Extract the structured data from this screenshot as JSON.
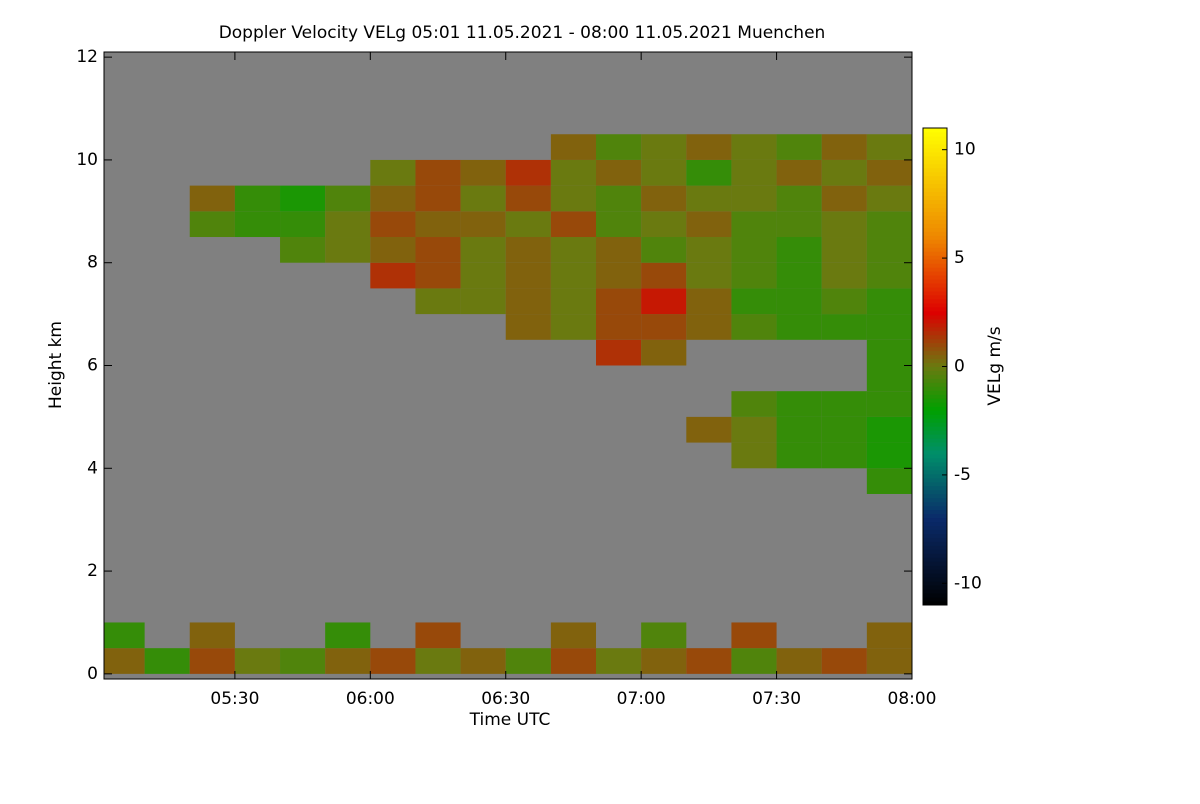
{
  "chart_data": {
    "type": "heatmap",
    "title": "Doppler Velocity VELg   05:01 11.05.2021 - 08:00 11.05.2021 Muenchen",
    "xlabel": "Time UTC",
    "ylabel": "Height km",
    "colorbar_label": "VELg m/s",
    "xlim": [
      5.0167,
      8.0
    ],
    "ylim": [
      -0.1,
      12.1
    ],
    "xticks": [
      {
        "value": 5.5,
        "label": "05:30"
      },
      {
        "value": 6.0,
        "label": "06:00"
      },
      {
        "value": 6.5,
        "label": "06:30"
      },
      {
        "value": 7.0,
        "label": "07:00"
      },
      {
        "value": 7.5,
        "label": "07:30"
      },
      {
        "value": 8.0,
        "label": "08:00"
      }
    ],
    "yticks": [
      0,
      2,
      4,
      6,
      8,
      10,
      12
    ],
    "clim": [
      -11,
      11
    ],
    "cticks": [
      -10,
      -5,
      0,
      5,
      10
    ],
    "background": "#808080",
    "colorscale": [
      [
        -11,
        "#000000"
      ],
      [
        -7,
        "#0a2a6a"
      ],
      [
        -4,
        "#008f6a"
      ],
      [
        -2,
        "#00a000"
      ],
      [
        0,
        "#6a7a10"
      ],
      [
        2.5,
        "#dd0000"
      ],
      [
        6,
        "#ee8800"
      ],
      [
        11,
        "#ffff00"
      ]
    ],
    "x_bins": [
      5.0167,
      5.1667,
      5.3333,
      5.5,
      5.6667,
      5.8333,
      6.0,
      6.1667,
      6.3333,
      6.5,
      6.6667,
      6.8333,
      7.0,
      7.1667,
      7.3333,
      7.5,
      7.6667,
      7.8333,
      8.0
    ],
    "y_bins": [
      0,
      0.5,
      1,
      1.5,
      2,
      2.5,
      3,
      3.5,
      4,
      4.5,
      5,
      5.5,
      6,
      6.5,
      7,
      7.5,
      8,
      8.5,
      9,
      9.5,
      10,
      10.5,
      11
    ],
    "z": [
      [
        0.5,
        -1,
        1,
        0,
        -0.5,
        0.5,
        1,
        0,
        0.5,
        -0.5,
        1,
        0,
        0.5,
        1,
        -0.5,
        0.5,
        1,
        0.5
      ],
      [
        -1,
        null,
        0.5,
        null,
        null,
        -1,
        null,
        1,
        null,
        null,
        0.5,
        null,
        -0.5,
        null,
        1,
        null,
        null,
        0.5
      ],
      [
        null,
        null,
        null,
        null,
        null,
        null,
        null,
        null,
        null,
        null,
        null,
        null,
        null,
        null,
        null,
        null,
        null,
        null
      ],
      [
        null,
        null,
        null,
        null,
        null,
        null,
        null,
        null,
        null,
        null,
        null,
        null,
        null,
        null,
        null,
        null,
        null,
        null
      ],
      [
        null,
        null,
        null,
        null,
        null,
        null,
        null,
        null,
        null,
        null,
        null,
        null,
        null,
        null,
        null,
        null,
        null,
        null
      ],
      [
        null,
        null,
        null,
        null,
        null,
        null,
        null,
        null,
        null,
        null,
        null,
        null,
        null,
        null,
        null,
        null,
        null,
        null
      ],
      [
        null,
        null,
        null,
        null,
        null,
        null,
        null,
        null,
        null,
        null,
        null,
        null,
        null,
        null,
        null,
        null,
        null,
        null
      ],
      [
        null,
        null,
        null,
        null,
        null,
        null,
        null,
        null,
        null,
        null,
        null,
        null,
        null,
        null,
        null,
        null,
        null,
        -1
      ],
      [
        null,
        null,
        null,
        null,
        null,
        null,
        null,
        null,
        null,
        null,
        null,
        null,
        null,
        null,
        0,
        -1,
        -1,
        -1.5
      ],
      [
        null,
        null,
        null,
        null,
        null,
        null,
        null,
        null,
        null,
        null,
        null,
        null,
        null,
        0.5,
        0,
        -1,
        -1,
        -1.5
      ],
      [
        null,
        null,
        null,
        null,
        null,
        null,
        null,
        null,
        null,
        null,
        null,
        null,
        null,
        null,
        -0.5,
        -1,
        -1,
        -1
      ],
      [
        null,
        null,
        null,
        null,
        null,
        null,
        null,
        null,
        null,
        null,
        null,
        null,
        null,
        null,
        null,
        null,
        null,
        -1
      ],
      [
        null,
        null,
        null,
        null,
        null,
        null,
        null,
        null,
        null,
        null,
        null,
        1.5,
        0.5,
        null,
        null,
        null,
        null,
        -1
      ],
      [
        null,
        null,
        null,
        null,
        null,
        null,
        null,
        null,
        null,
        0.5,
        0,
        1,
        1,
        0.5,
        -0.5,
        -1,
        -1,
        -1
      ],
      [
        null,
        null,
        null,
        null,
        null,
        null,
        null,
        0,
        0,
        0.5,
        0,
        1,
        2,
        0.5,
        -1,
        -1,
        -0.5,
        -1
      ],
      [
        null,
        null,
        null,
        null,
        null,
        null,
        1.5,
        1,
        0,
        0.5,
        0,
        0.5,
        1,
        0,
        -0.5,
        -1,
        0,
        -0.5
      ],
      [
        null,
        null,
        null,
        null,
        -0.5,
        0,
        0.5,
        1,
        0,
        0.5,
        0,
        0.5,
        -0.5,
        0,
        -0.5,
        -1,
        0,
        -0.5
      ],
      [
        null,
        null,
        -0.5,
        -1,
        -1,
        0,
        1,
        0.5,
        0.5,
        0,
        1,
        -0.5,
        0,
        0.5,
        -0.5,
        -0.5,
        0,
        -0.5
      ],
      [
        null,
        null,
        0.5,
        -1,
        -1.5,
        -0.5,
        0.5,
        1,
        0,
        1,
        0,
        -0.5,
        0.5,
        0,
        0,
        -0.5,
        0.5,
        0
      ],
      [
        null,
        null,
        null,
        null,
        null,
        null,
        0,
        1,
        0.5,
        1.5,
        0,
        0.5,
        0,
        -1,
        0,
        0.5,
        0,
        0.5
      ],
      [
        null,
        null,
        null,
        null,
        null,
        null,
        null,
        null,
        null,
        null,
        0.5,
        -0.5,
        0,
        0.5,
        0,
        -0.5,
        0.5,
        0
      ],
      [
        null,
        null,
        null,
        null,
        null,
        null,
        null,
        null,
        null,
        null,
        null,
        null,
        null,
        null,
        null,
        null,
        null,
        null
      ]
    ]
  }
}
